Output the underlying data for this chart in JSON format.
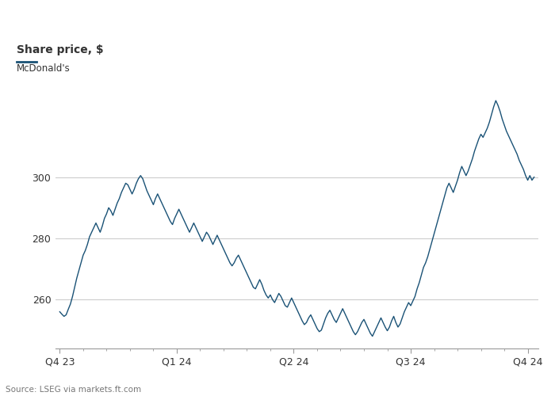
{
  "title": "Share price, $",
  "legend_label": "McDonald's",
  "line_color": "#1a5276",
  "background_color": "#ffffff",
  "plot_bg_color": "#ffffff",
  "text_color": "#333333",
  "grid_color": "#cccccc",
  "source": "Source: LSEG via markets.ft.com",
  "yticks": [
    260,
    280,
    300
  ],
  "ylim": [
    244,
    332
  ],
  "xtick_labels": [
    "Q4 23",
    "Q1 24",
    "Q2 24",
    "Q3 24",
    "Q4 24"
  ],
  "prices": [
    256.0,
    255.2,
    254.5,
    255.0,
    256.8,
    258.5,
    261.0,
    264.0,
    267.0,
    269.5,
    272.0,
    274.5,
    276.0,
    278.0,
    280.5,
    282.0,
    283.5,
    285.0,
    283.5,
    282.0,
    284.0,
    286.5,
    288.0,
    290.0,
    289.0,
    287.5,
    289.5,
    291.5,
    293.0,
    295.0,
    296.5,
    298.0,
    297.5,
    296.0,
    294.5,
    296.0,
    298.0,
    299.5,
    300.5,
    299.5,
    297.5,
    295.5,
    294.0,
    292.5,
    291.0,
    293.0,
    294.5,
    293.0,
    291.5,
    290.0,
    288.5,
    287.0,
    285.5,
    284.5,
    286.5,
    288.0,
    289.5,
    288.0,
    286.5,
    285.0,
    283.5,
    282.0,
    283.5,
    285.0,
    283.5,
    282.0,
    280.5,
    279.0,
    280.5,
    282.0,
    281.0,
    279.5,
    278.0,
    279.5,
    281.0,
    279.5,
    278.0,
    276.5,
    275.0,
    273.5,
    272.0,
    271.0,
    272.0,
    273.5,
    274.5,
    273.0,
    271.5,
    270.0,
    268.5,
    267.0,
    265.5,
    264.0,
    263.5,
    265.0,
    266.5,
    265.0,
    263.0,
    261.5,
    260.5,
    261.5,
    260.0,
    259.0,
    260.5,
    262.0,
    261.0,
    259.5,
    258.0,
    257.5,
    259.0,
    260.5,
    259.0,
    257.5,
    256.0,
    254.5,
    253.0,
    251.8,
    252.5,
    254.0,
    255.0,
    253.5,
    252.0,
    250.5,
    249.5,
    250.0,
    252.0,
    254.0,
    255.5,
    256.5,
    255.0,
    253.5,
    252.5,
    254.0,
    255.5,
    257.0,
    255.5,
    254.0,
    252.5,
    251.0,
    249.5,
    248.5,
    249.5,
    251.0,
    252.5,
    253.5,
    252.0,
    250.5,
    249.0,
    248.0,
    249.5,
    251.0,
    252.5,
    254.0,
    252.5,
    251.0,
    249.8,
    251.0,
    253.0,
    254.5,
    252.5,
    251.0,
    252.0,
    254.0,
    256.0,
    257.5,
    259.0,
    258.0,
    259.5,
    261.0,
    263.5,
    265.5,
    268.0,
    270.5,
    272.0,
    274.0,
    276.5,
    279.0,
    281.5,
    284.0,
    286.5,
    289.0,
    291.5,
    294.0,
    296.5,
    298.0,
    296.5,
    295.0,
    297.0,
    299.0,
    301.5,
    303.5,
    302.0,
    300.5,
    302.0,
    304.0,
    306.0,
    308.5,
    310.5,
    312.5,
    314.0,
    313.0,
    314.5,
    316.0,
    318.0,
    320.5,
    323.0,
    325.0,
    323.5,
    321.5,
    319.0,
    317.0,
    315.0,
    313.5,
    312.0,
    310.5,
    309.0,
    307.5,
    305.5,
    304.0,
    302.5,
    300.5,
    299.0,
    300.5,
    299.0,
    300.0
  ]
}
